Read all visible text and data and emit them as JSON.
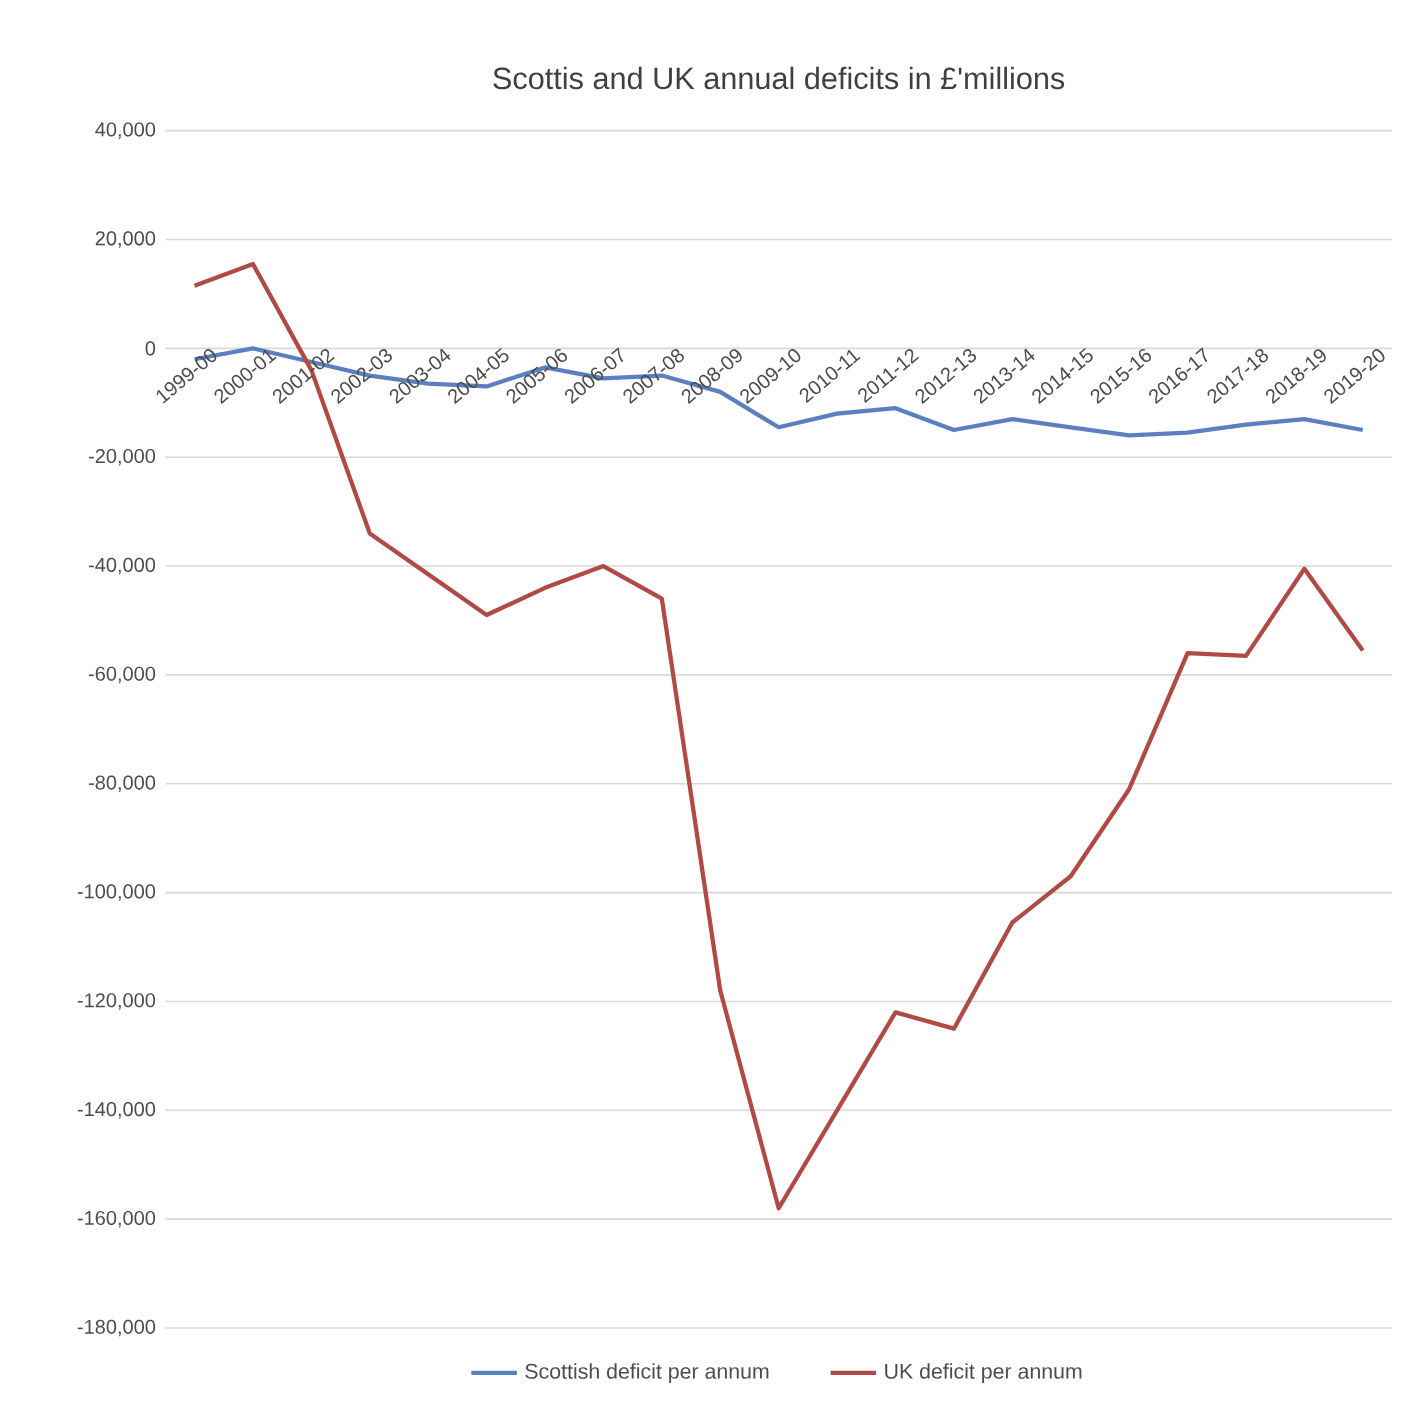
{
  "chart_data": {
    "type": "line",
    "title": "Scottis and UK annual deficits in £'millions",
    "categories": [
      "1999-00",
      "2000-01",
      "2001-02",
      "2002-03",
      "2003-04",
      "2004-05",
      "2005-06",
      "2006-07",
      "2007-08",
      "2008-09",
      "2009-10",
      "2010-11",
      "2011-12",
      "2012-13",
      "2013-14",
      "2014-15",
      "2015-16",
      "2016-17",
      "2017-18",
      "2018-19",
      "2019-20"
    ],
    "series": [
      {
        "name": "Scottish deficit per annum",
        "color": "#5b80c0",
        "values": [
          -2000,
          0,
          -2500,
          -5000,
          -6500,
          -7000,
          -3500,
          -5500,
          -5000,
          -8000,
          -14500,
          -12000,
          -11000,
          -15000,
          -13000,
          -14500,
          -16000,
          -15500,
          -14000,
          -13000,
          -15000
        ]
      },
      {
        "name": "UK deficit per annum",
        "color": "#b04a45",
        "values": [
          11500,
          15500,
          -4000,
          -34000,
          -41500,
          -49000,
          -44000,
          -40000,
          -46000,
          -118000,
          -158000,
          -140000,
          -122000,
          -125000,
          -105500,
          -97000,
          -81000,
          -56000,
          -56500,
          -40500,
          -55500
        ]
      }
    ],
    "ylim": [
      -180000,
      40000
    ],
    "yticks": [
      {
        "value": 40000,
        "label": "40,000"
      },
      {
        "value": 20000,
        "label": "20,000"
      },
      0,
      {
        "value": -20000,
        "label": "-20,000"
      },
      {
        "value": -40000,
        "label": "-40,000"
      },
      {
        "value": -60000,
        "label": "-60,000"
      },
      {
        "value": -80000,
        "label": "-80,000"
      },
      {
        "value": -100000,
        "label": "-100,000"
      },
      {
        "value": -120000,
        "label": "-120,000"
      },
      {
        "value": -140000,
        "label": "-140,000"
      },
      {
        "value": -160000,
        "label": "-160,000"
      },
      {
        "value": -180000,
        "label": "-180,000"
      }
    ],
    "grid": "y",
    "legend": "bottom",
    "marker": "none",
    "line_style": "solid"
  }
}
